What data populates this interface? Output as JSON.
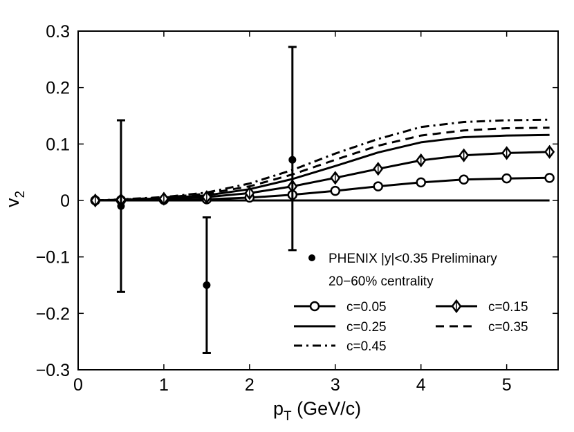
{
  "chart_data": {
    "type": "line",
    "title": "",
    "xlabel": "p",
    "xlabel_sub": "T",
    "xlabel_unit": " (GeV/c)",
    "ylabel": "v",
    "ylabel_sub": "2",
    "xlim": [
      0,
      5.6
    ],
    "ylim": [
      -0.3,
      0.3
    ],
    "xticks": [
      0,
      1,
      2,
      3,
      4,
      5
    ],
    "yticks": [
      -0.3,
      -0.2,
      -0.1,
      0,
      0.1,
      0.2,
      0.3
    ],
    "xtick_labels": [
      "0",
      "1",
      "2",
      "3",
      "4",
      "5"
    ],
    "ytick_labels": [
      "−0.3",
      "−0.2",
      "−0.1",
      "0",
      "0.1",
      "0.2",
      "0.3"
    ],
    "grid": false,
    "legend_position": "bottom-right",
    "data_legend": {
      "label": "PHENIX |y|<0.35 Preliminary",
      "note": "20−60% centrality"
    },
    "data_points": [
      {
        "x": 0.5,
        "y": -0.01,
        "err_low": 0.152,
        "err_high": 0.152
      },
      {
        "x": 1.5,
        "y": -0.15,
        "err_low": 0.12,
        "err_high": 0.12
      },
      {
        "x": 2.5,
        "y": 0.072,
        "err_low": 0.16,
        "err_high": 0.2
      }
    ],
    "x": [
      0.2,
      0.5,
      1.0,
      1.5,
      2.0,
      2.5,
      3.0,
      3.5,
      4.0,
      4.5,
      5.0,
      5.5
    ],
    "zero_line": true,
    "series": [
      {
        "name": "c=0.05",
        "style": "solid-circle",
        "values": [
          0.0,
          0.0005,
          0.001,
          0.002,
          0.005,
          0.01,
          0.017,
          0.025,
          0.032,
          0.037,
          0.039,
          0.04
        ]
      },
      {
        "name": "c=0.15",
        "style": "solid-diamond",
        "values": [
          0.0,
          0.001,
          0.003,
          0.006,
          0.013,
          0.025,
          0.04,
          0.056,
          0.071,
          0.08,
          0.084,
          0.086
        ]
      },
      {
        "name": "c=0.25",
        "style": "solid",
        "values": [
          0.0,
          0.001,
          0.004,
          0.009,
          0.02,
          0.038,
          0.061,
          0.085,
          0.103,
          0.112,
          0.115,
          0.116
        ]
      },
      {
        "name": "c=0.35",
        "style": "dashed",
        "values": [
          0.0,
          0.0015,
          0.005,
          0.012,
          0.025,
          0.046,
          0.072,
          0.097,
          0.115,
          0.124,
          0.128,
          0.129
        ]
      },
      {
        "name": "c=0.45",
        "style": "dashdot",
        "values": [
          0.0,
          0.002,
          0.006,
          0.014,
          0.03,
          0.054,
          0.083,
          0.109,
          0.13,
          0.139,
          0.142,
          0.143
        ]
      }
    ]
  }
}
